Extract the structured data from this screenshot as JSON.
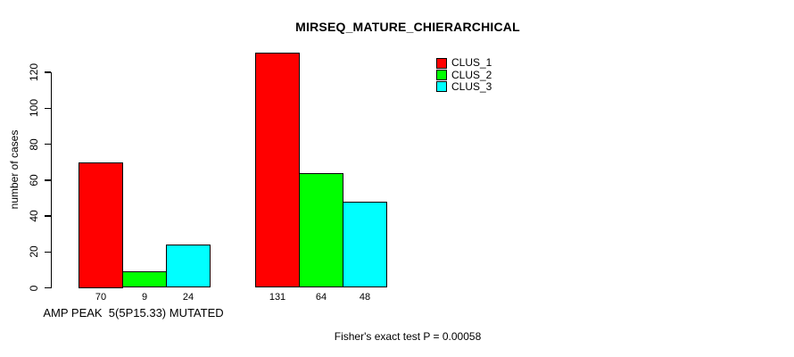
{
  "chart_data": {
    "type": "bar",
    "title": "MIRSEQ_MATURE_CHIERARCHICAL",
    "ylabel": "number of cases",
    "ylim": [
      0,
      131
    ],
    "yticks": [
      0,
      20,
      40,
      60,
      80,
      100,
      120
    ],
    "grid": false,
    "legend_position": "top-right",
    "series": [
      {
        "name": "CLUS_1",
        "color": "#ff0000"
      },
      {
        "name": "CLUS_2",
        "color": "#00ff00"
      },
      {
        "name": "CLUS_3",
        "color": "#00ffff"
      }
    ],
    "groups": [
      {
        "label": "AMP PEAK  5(5P15.33) MUTATED",
        "values": [
          70,
          9,
          24
        ]
      },
      {
        "label": "",
        "values": [
          131,
          64,
          48
        ]
      }
    ],
    "annotation": "Fisher's exact test P = 0.00058"
  }
}
